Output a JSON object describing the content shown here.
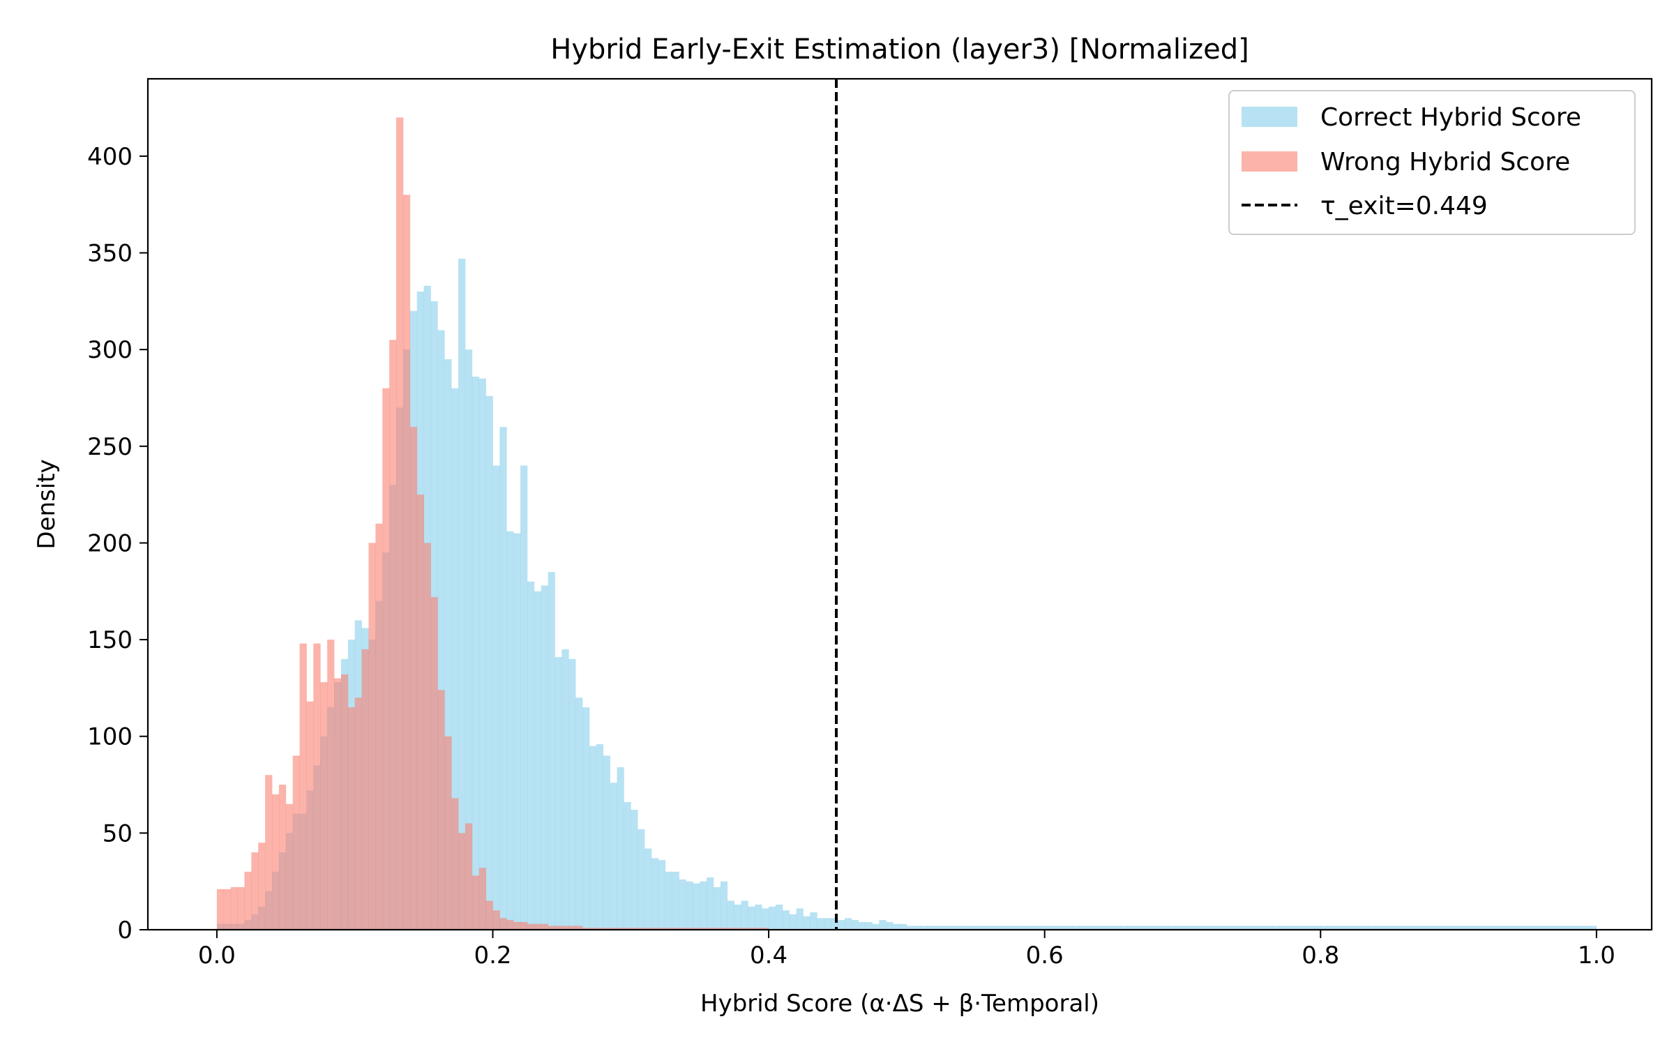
{
  "chart_data": {
    "type": "histogram",
    "title": "Hybrid Early-Exit Estimation (layer3) [Normalized]",
    "xlabel": "Hybrid Score (α·ΔS + β·Temporal)",
    "ylabel": "Density",
    "xlim": [
      -0.05,
      1.04
    ],
    "ylim": [
      0,
      440
    ],
    "xticks": [
      0.0,
      0.2,
      0.4,
      0.6,
      0.8,
      1.0
    ],
    "xtick_labels": [
      "0.0",
      "0.2",
      "0.4",
      "0.6",
      "0.8",
      "1.0"
    ],
    "yticks": [
      0,
      50,
      100,
      150,
      200,
      250,
      300,
      350,
      400
    ],
    "ytick_labels": [
      "0",
      "50",
      "100",
      "150",
      "200",
      "250",
      "300",
      "350",
      "400"
    ],
    "grid": false,
    "legend_position": "top-right",
    "threshold": {
      "label": "τ_exit=0.449",
      "x": 0.449,
      "color": "#000000",
      "style": "dashed"
    },
    "series": [
      {
        "name": "Correct Hybrid Score",
        "color": "#87CEEB",
        "opacity": 0.6,
        "bin_start": 0.0,
        "bin_width": 0.005,
        "values": [
          3,
          3,
          3,
          3,
          5,
          8,
          12,
          20,
          30,
          40,
          50,
          60,
          60,
          72,
          85,
          100,
          115,
          128,
          140,
          150,
          160,
          156,
          150,
          170,
          195,
          230,
          270,
          300,
          320,
          330,
          333,
          325,
          310,
          295,
          280,
          347,
          300,
          286,
          285,
          276,
          240,
          260,
          206,
          205,
          240,
          180,
          175,
          178,
          185,
          141,
          145,
          140,
          120,
          115,
          95,
          96,
          90,
          76,
          84,
          66,
          62,
          52,
          42,
          37,
          36,
          30,
          30,
          26,
          25,
          24,
          25,
          27,
          22,
          25,
          15,
          13,
          15,
          12,
          13,
          11,
          12,
          13,
          10,
          8,
          11,
          7,
          9,
          6,
          6,
          6,
          5,
          6,
          5,
          4,
          4,
          3,
          5,
          4,
          3,
          3,
          2,
          2,
          2,
          2,
          2,
          2,
          2,
          2,
          2,
          2,
          2,
          2,
          2,
          2,
          2,
          2,
          2,
          2,
          2,
          2,
          2,
          2,
          2,
          2,
          2,
          2,
          2,
          2,
          2,
          2,
          2,
          2,
          2,
          2,
          2,
          2,
          2,
          2,
          2,
          2,
          2,
          2,
          2,
          2,
          2,
          2,
          2,
          2,
          2,
          2,
          2,
          2,
          2,
          2,
          2,
          2,
          2,
          2,
          2,
          2,
          2,
          2,
          2,
          2,
          2,
          2,
          2,
          2,
          2,
          2,
          2,
          2,
          2,
          2,
          2,
          2,
          2,
          2,
          2,
          2,
          2,
          2,
          2,
          2,
          2,
          2,
          2,
          2,
          2,
          2,
          2,
          2,
          2,
          2,
          2,
          2,
          2,
          2,
          2,
          2
        ]
      },
      {
        "name": "Wrong Hybrid Score",
        "color": "#FA8072",
        "opacity": 0.6,
        "bin_start": 0.0,
        "bin_width": 0.005,
        "values": [
          21,
          21,
          22,
          22,
          30,
          40,
          45,
          80,
          70,
          75,
          65,
          90,
          148,
          118,
          148,
          128,
          150,
          130,
          132,
          115,
          120,
          145,
          200,
          210,
          280,
          305,
          420,
          380,
          260,
          225,
          200,
          172,
          124,
          100,
          68,
          50,
          55,
          28,
          32,
          15,
          10,
          6,
          5,
          4,
          4,
          3,
          3,
          3,
          2,
          2,
          2,
          2,
          2,
          1,
          1,
          1,
          1,
          1,
          1,
          1,
          1,
          1,
          1,
          1,
          1,
          1,
          1,
          1,
          1,
          1,
          1,
          1,
          1,
          1,
          1,
          1,
          1,
          1,
          1,
          1
        ]
      }
    ]
  }
}
